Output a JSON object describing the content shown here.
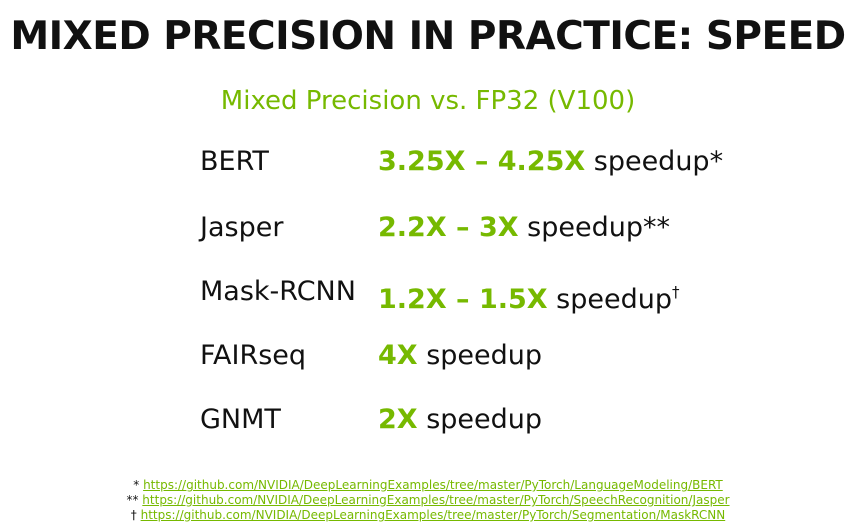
{
  "title": "MIXED PRECISION IN PRACTICE:  SPEED",
  "subtitle": "Mixed Precision vs. FP32 (V100)",
  "rows": [
    {
      "name": "BERT",
      "value": "3.25X – 4.25X",
      "suffix": " speedup",
      "mark": "*"
    },
    {
      "name": "Jasper",
      "value": "2.2X – 3X",
      "suffix": " speedup",
      "mark": "**"
    },
    {
      "name": "Mask-RCNN",
      "value": "1.2X – 1.5X",
      "suffix": " speedup",
      "mark": "†"
    },
    {
      "name": "FAIRseq",
      "value": "4X",
      "suffix": " speedup",
      "mark": ""
    },
    {
      "name": "GNMT",
      "value": "2X",
      "suffix": " speedup",
      "mark": ""
    }
  ],
  "footnotes": [
    {
      "mark": "* ",
      "url": "https://github.com/NVIDIA/DeepLearningExamples/tree/master/PyTorch/LanguageModeling/BERT"
    },
    {
      "mark": "** ",
      "url": "https://github.com/NVIDIA/DeepLearningExamples/tree/master/PyTorch/SpeechRecognition/Jasper"
    },
    {
      "mark": "† ",
      "url": "https://github.com/NVIDIA/DeepLearningExamples/tree/master/PyTorch/Segmentation/MaskRCNN"
    }
  ],
  "colors": {
    "accent": "#76b900",
    "text": "#111111"
  }
}
